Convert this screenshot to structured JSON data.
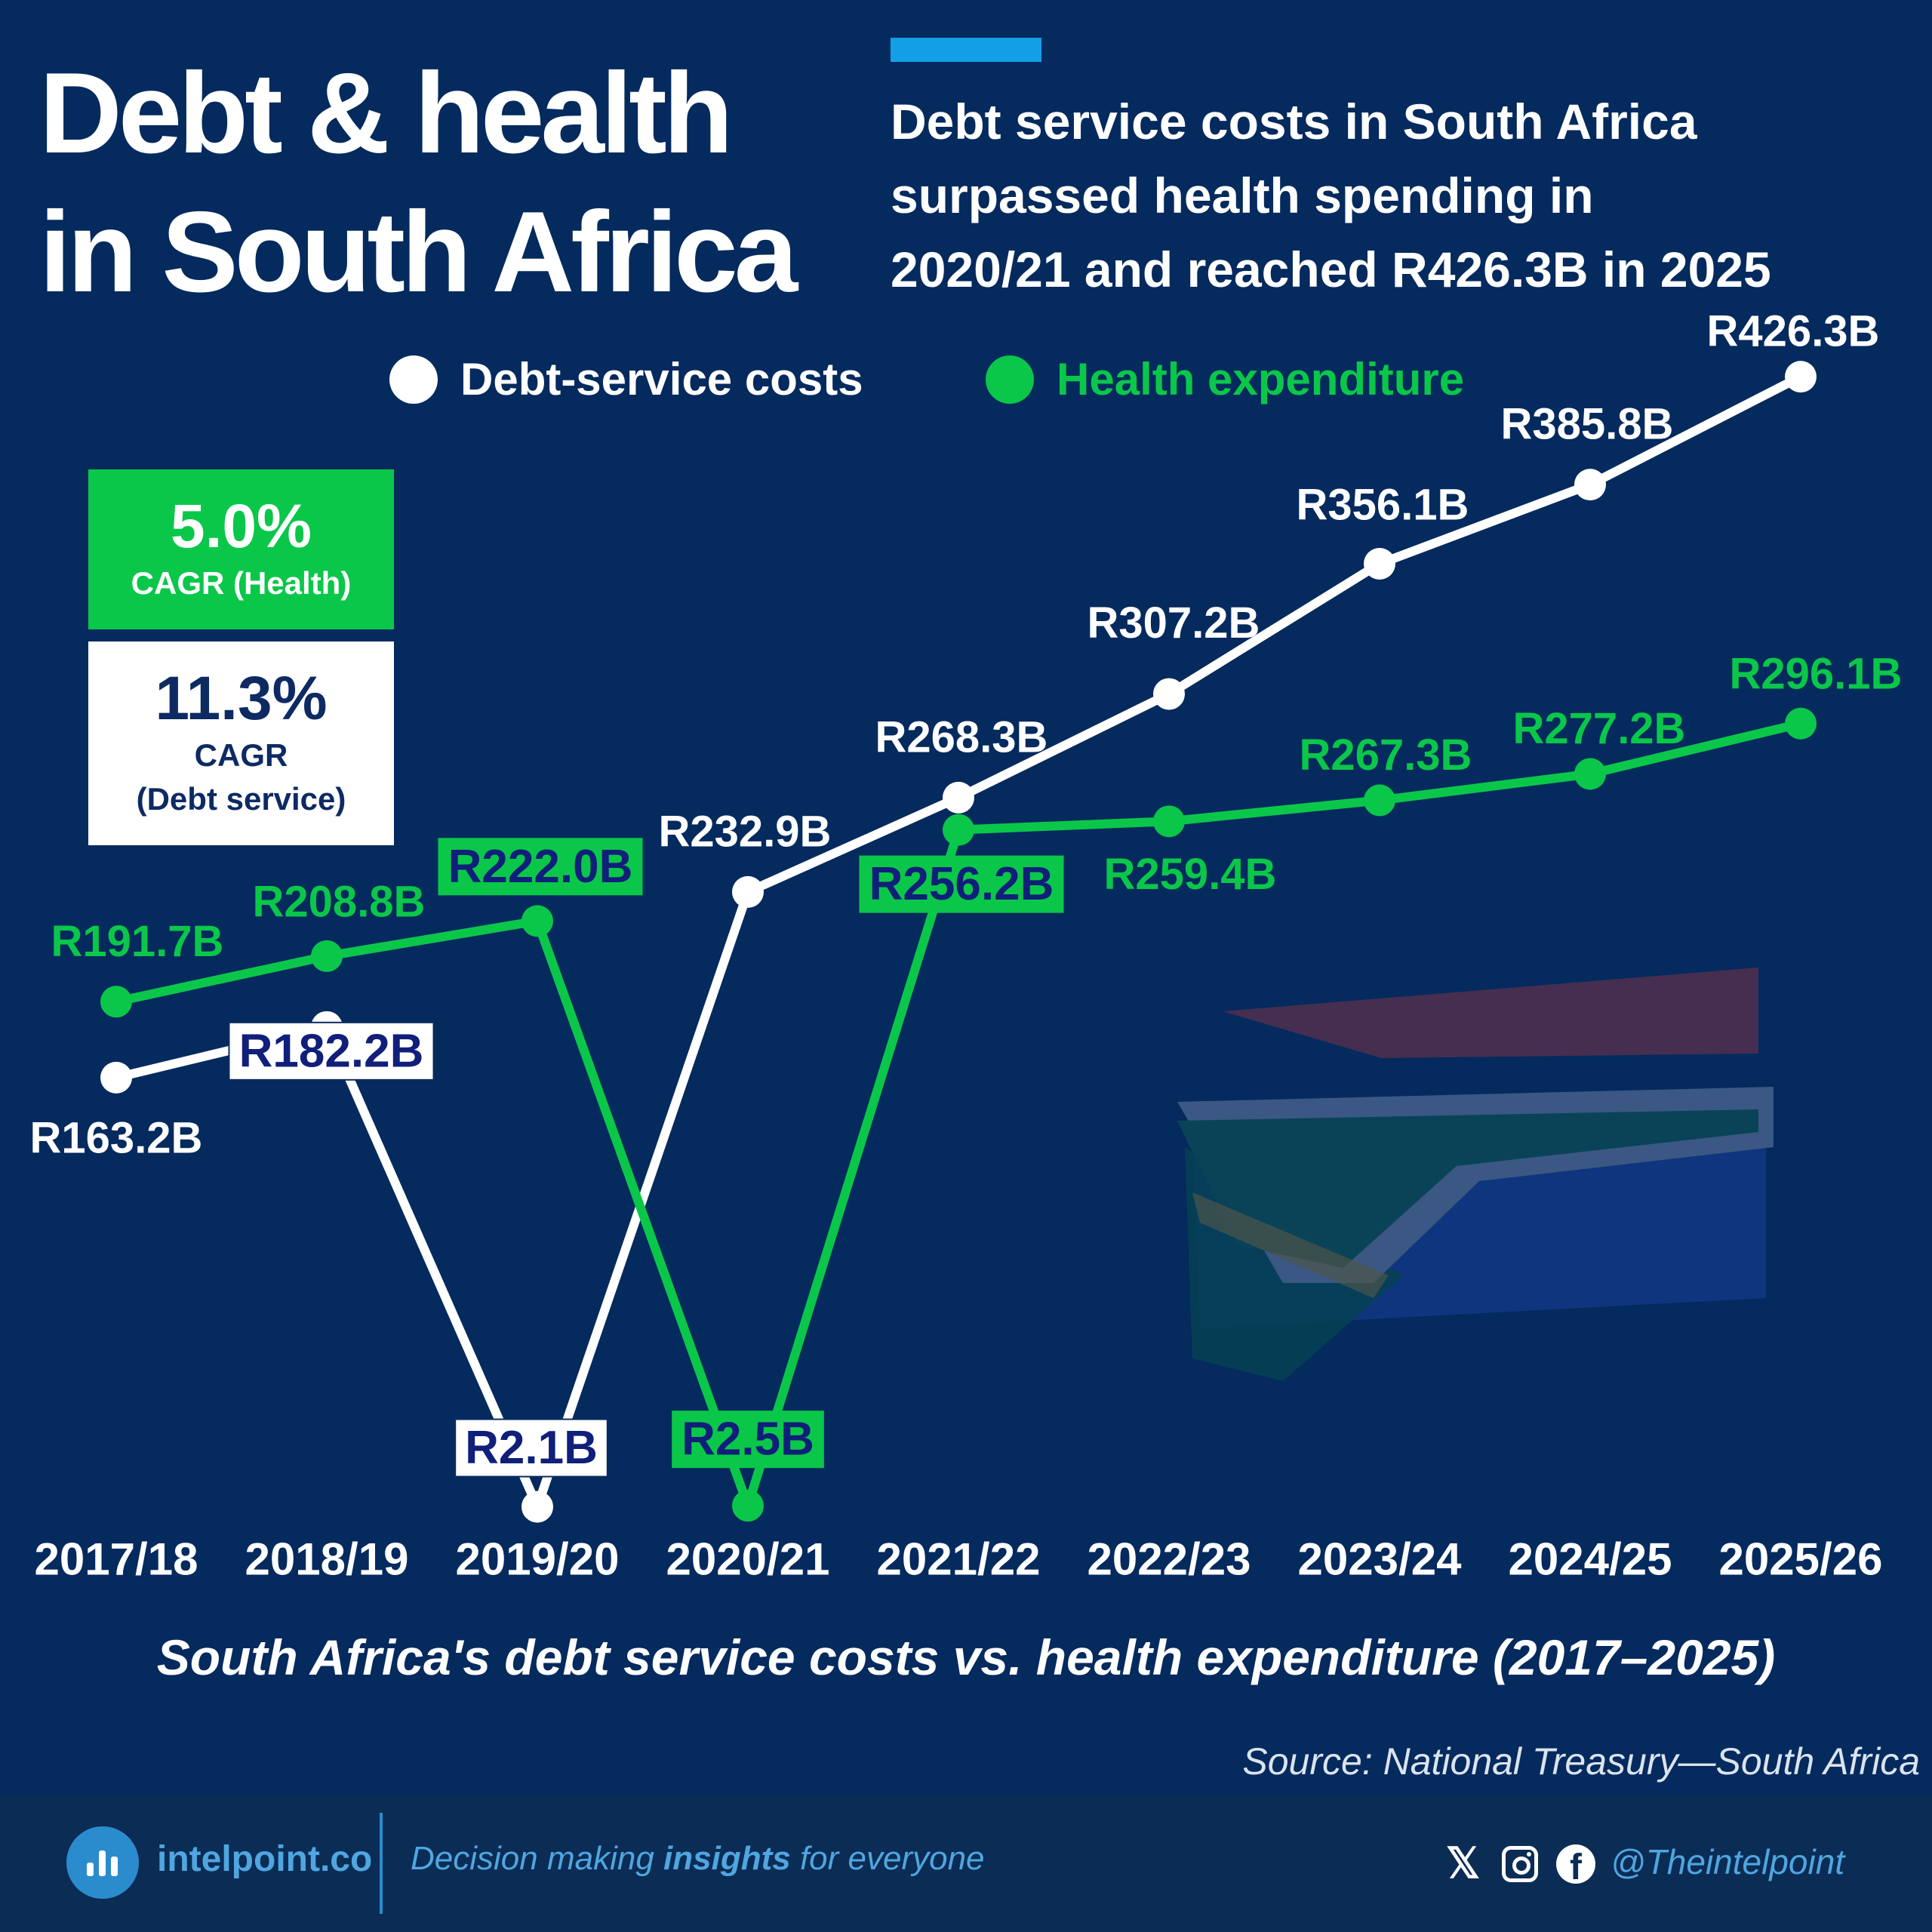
{
  "header": {
    "title_line1": "Debt & health",
    "title_line2": "in South Africa",
    "subtitle_line1": "Debt service costs in South Africa",
    "subtitle_line2": "surpassed health spending in",
    "subtitle_line3": "2020/21 and reached R426.3B in 2025"
  },
  "legend": {
    "debt_label": "Debt-service costs",
    "health_label": "Health expenditure"
  },
  "cagr": {
    "health_value": "5.0%",
    "health_label": "CAGR (Health)",
    "debt_value": "11.3%",
    "debt_label_line1": "CAGR",
    "debt_label_line2": "(Debt service)"
  },
  "chart_data": {
    "type": "line",
    "categories": [
      "2017/18",
      "2018/19",
      "2019/20",
      "2020/21",
      "2021/22",
      "2022/23",
      "2023/24",
      "2024/25",
      "2025/26"
    ],
    "series": [
      {
        "name": "Debt-service costs",
        "color": "#ffffff",
        "values": [
          163.2,
          182.2,
          2.1,
          232.9,
          268.3,
          307.2,
          356.1,
          385.8,
          426.3
        ],
        "labels": [
          "R163.2B",
          "R182.2B",
          "R2.1B",
          "R232.9B",
          "R268.3B",
          "R307.2B",
          "R356.1B",
          "R385.8B",
          "R426.3B"
        ]
      },
      {
        "name": "Health expenditure",
        "color": "#0ac74a",
        "values": [
          191.7,
          208.8,
          222.0,
          2.5,
          256.2,
          259.4,
          267.3,
          277.2,
          296.1
        ],
        "labels": [
          "R191.7B",
          "R208.8B",
          "R222.0B",
          "R2.5B",
          "R256.2B",
          "R259.4B",
          "R267.3B",
          "R277.2B",
          "R296.1B"
        ]
      }
    ],
    "unit": "R billion",
    "grid": false,
    "legend_position": "top"
  },
  "caption": "South Africa's debt service costs vs. health expenditure (2017–2025)",
  "source": "Source: National Treasury—South Africa",
  "footer": {
    "brand": "intelpoint.co",
    "tagline_pre": "Decision making ",
    "tagline_bold": "insights",
    "tagline_post": " for everyone",
    "handle": "@Theintelpoint",
    "x_glyph": "𝕏",
    "fb_glyph": "f"
  },
  "colors": {
    "background": "#042a5e",
    "accent": "#139fe6",
    "debt": "#ffffff",
    "health": "#0ac74a",
    "label_dark": "#101f7a",
    "footer": "#0b2c55"
  }
}
